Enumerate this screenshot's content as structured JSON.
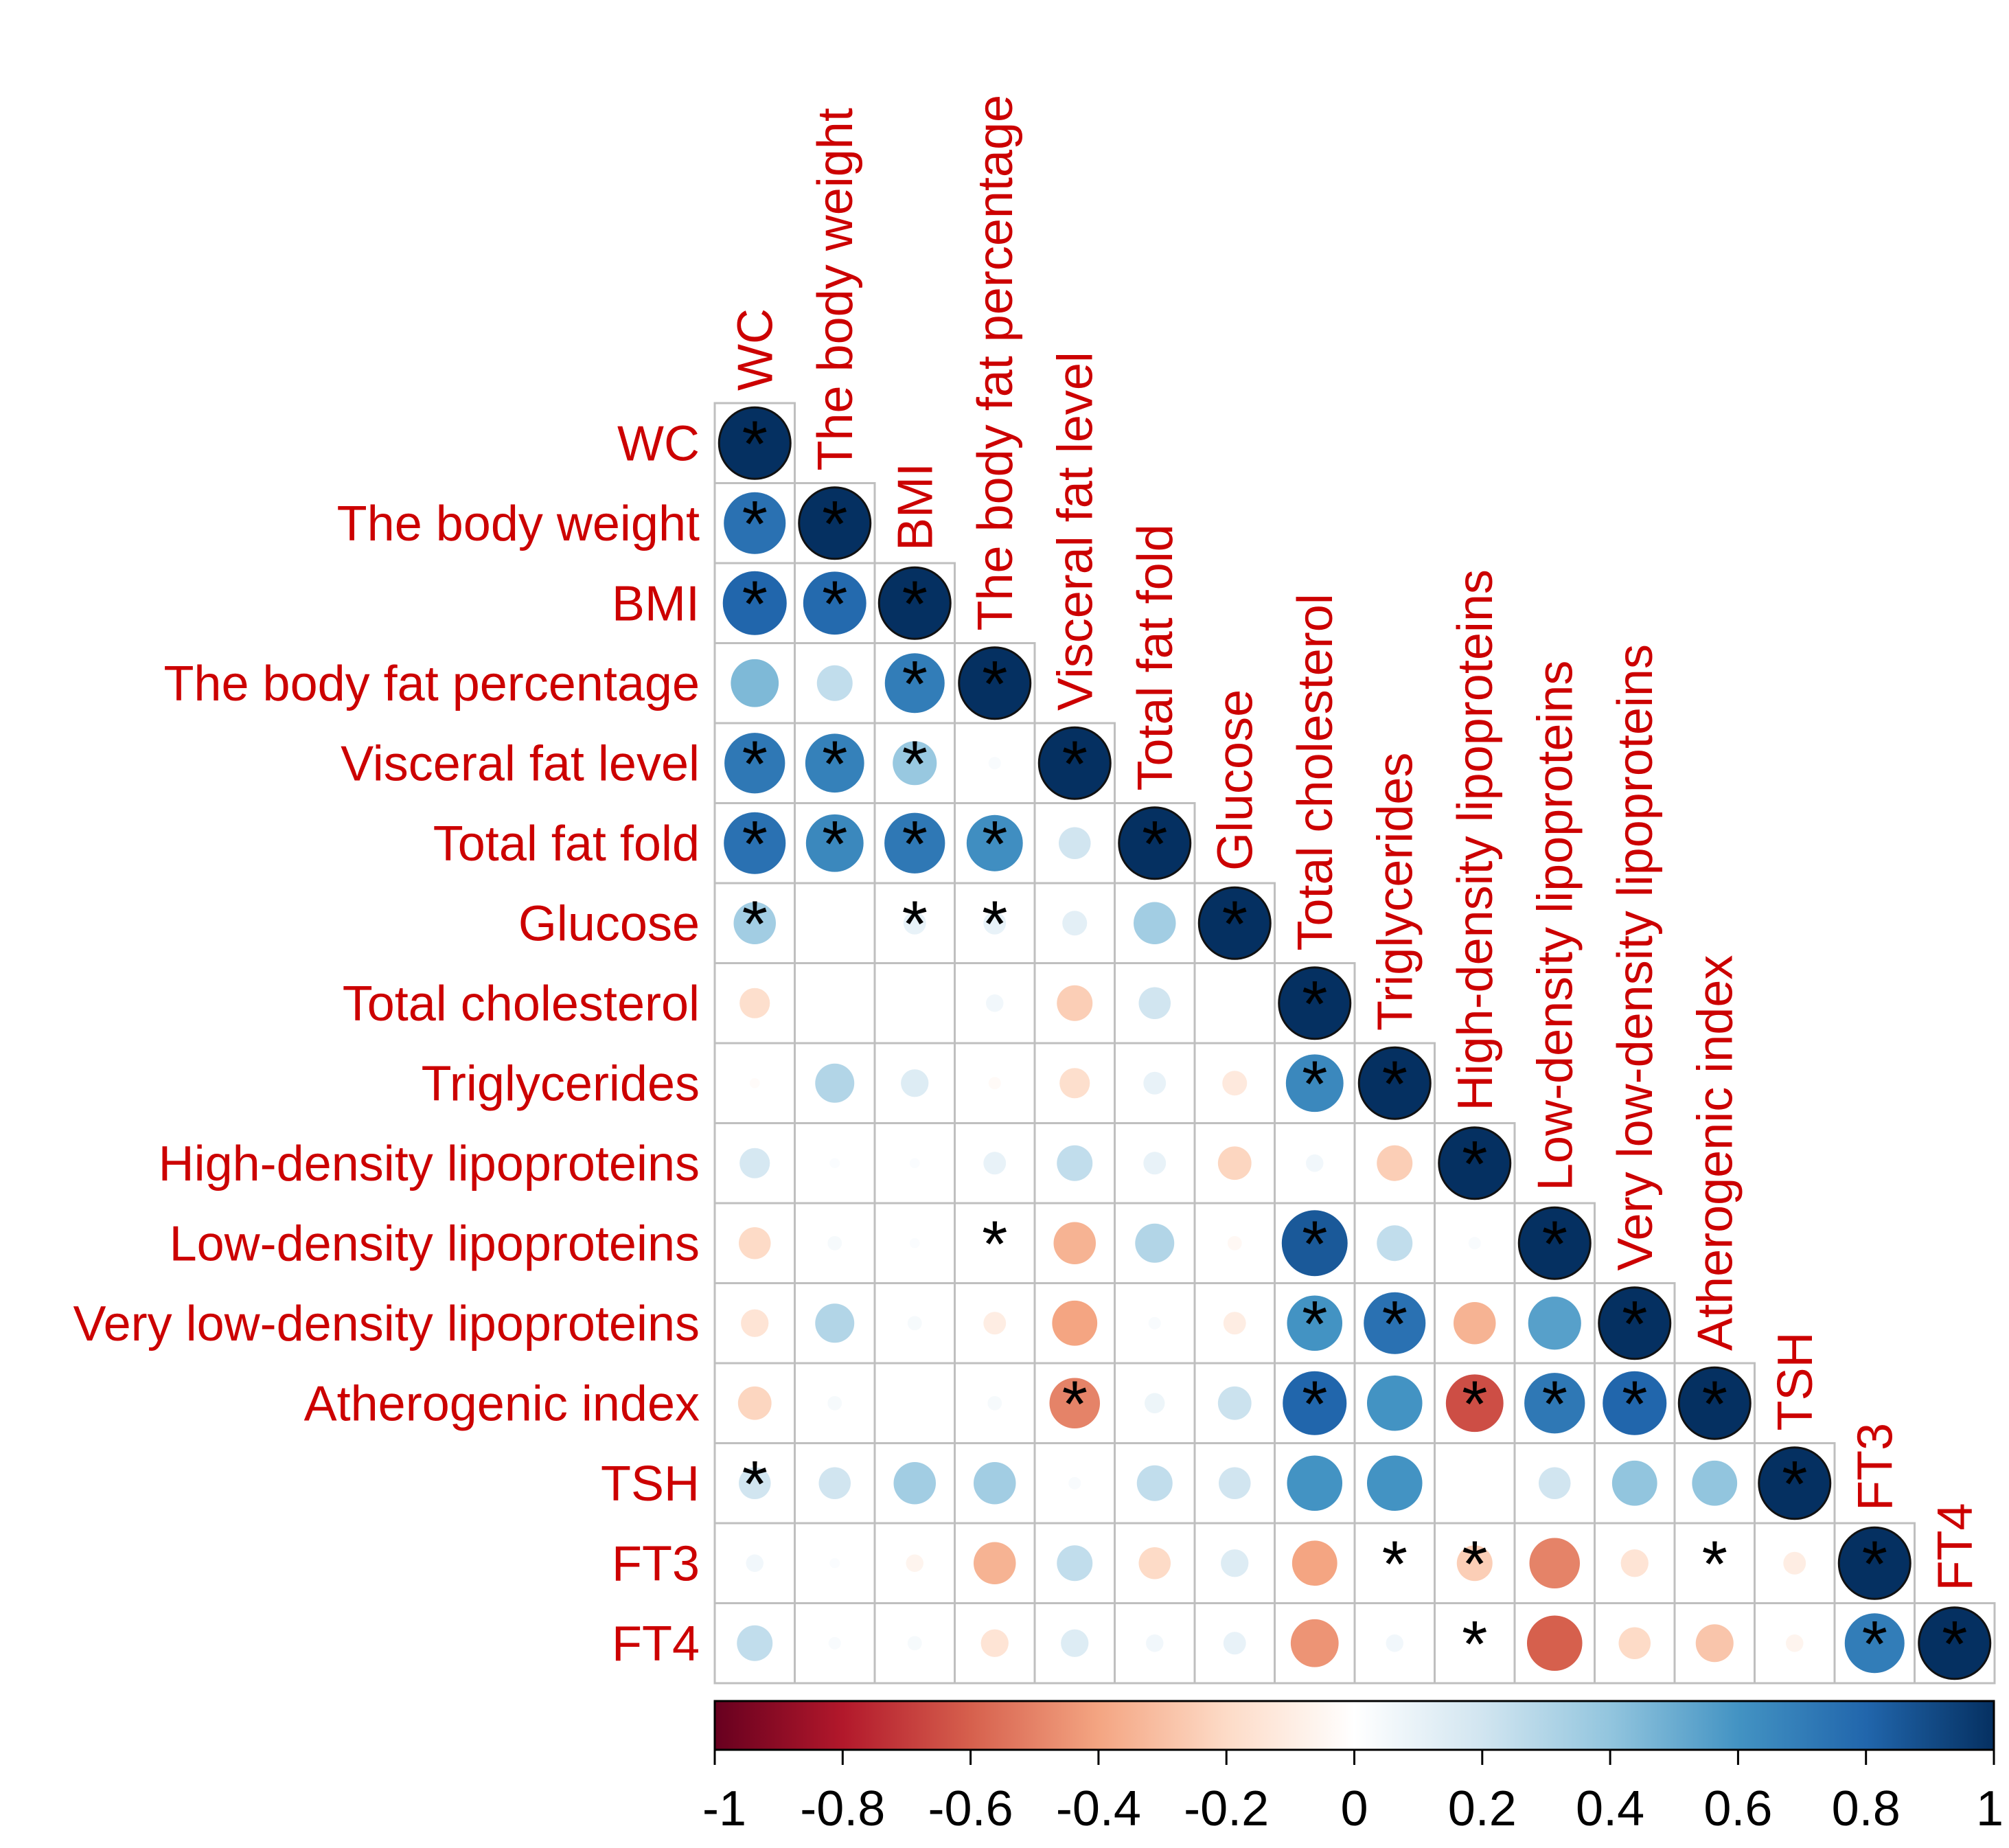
{
  "chart_data": {
    "type": "heatmap",
    "title": "",
    "variables": [
      "WC",
      "The body weight",
      "BMI",
      "The body fat percentage",
      "Visceral fat level",
      "Total fat fold",
      "Glucose",
      "Total cholesterol",
      "Triglycerides",
      "High-density lipoproteins",
      "Low-density lipoproteins",
      "Very low-density lipoproteins",
      "Atherogenic index",
      "TSH",
      "FT3",
      "FT4"
    ],
    "values": [
      [
        1
      ],
      [
        0.75,
        1
      ],
      [
        0.8,
        0.78,
        1
      ],
      [
        0.45,
        0.25,
        0.7,
        1
      ],
      [
        0.72,
        0.68,
        0.38,
        0.03,
        1
      ],
      [
        0.75,
        0.65,
        0.72,
        0.62,
        0.2,
        1
      ],
      [
        0.35,
        0,
        0.1,
        0.1,
        0.12,
        0.35,
        1
      ],
      [
        -0.18,
        0,
        0,
        0.06,
        -0.25,
        0.2,
        0,
        1
      ],
      [
        -0.02,
        0.3,
        0.15,
        -0.03,
        -0.18,
        0.1,
        -0.12,
        0.65,
        1
      ],
      [
        0.18,
        0.02,
        0.02,
        0.1,
        0.25,
        0.1,
        -0.22,
        0.06,
        -0.25,
        1
      ],
      [
        -0.2,
        0.04,
        0.02,
        0,
        -0.35,
        0.3,
        -0.04,
        0.85,
        0.25,
        0.03,
        1
      ],
      [
        -0.15,
        0.3,
        0.04,
        -0.1,
        -0.4,
        0.03,
        -0.1,
        0.6,
        0.75,
        -0.35,
        0.55,
        1
      ],
      [
        -0.22,
        0.04,
        0,
        0.04,
        -0.5,
        0.08,
        0.22,
        0.8,
        0.6,
        -0.65,
        0.72,
        0.8,
        1
      ],
      [
        0.2,
        0.2,
        0.35,
        0.35,
        0.03,
        0.25,
        0.2,
        0.6,
        0.6,
        0,
        0.2,
        0.4,
        0.4,
        1
      ],
      [
        0.06,
        0.02,
        -0.06,
        -0.35,
        0.25,
        -0.2,
        0.15,
        -0.4,
        0,
        -0.25,
        -0.5,
        -0.15,
        0,
        -0.1,
        1
      ],
      [
        0.25,
        0.03,
        0.04,
        -0.15,
        0.15,
        0.06,
        0.1,
        -0.45,
        0.06,
        0,
        -0.6,
        -0.2,
        -0.28,
        -0.06,
        0.7,
        1
      ]
    ],
    "significance": [
      [
        1
      ],
      [
        1,
        1
      ],
      [
        1,
        1,
        1
      ],
      [
        0,
        0,
        1,
        1
      ],
      [
        1,
        1,
        1,
        0,
        1
      ],
      [
        1,
        1,
        1,
        1,
        0,
        1
      ],
      [
        1,
        0,
        1,
        1,
        0,
        0,
        1
      ],
      [
        0,
        0,
        0,
        0,
        0,
        0,
        0,
        1
      ],
      [
        0,
        0,
        0,
        0,
        0,
        0,
        0,
        1,
        1
      ],
      [
        0,
        0,
        0,
        0,
        0,
        0,
        0,
        0,
        0,
        1
      ],
      [
        0,
        0,
        0,
        1,
        0,
        0,
        0,
        1,
        0,
        0,
        1
      ],
      [
        0,
        0,
        0,
        0,
        0,
        0,
        0,
        1,
        1,
        0,
        0,
        1
      ],
      [
        0,
        0,
        0,
        0,
        1,
        0,
        0,
        1,
        0,
        1,
        1,
        1,
        1
      ],
      [
        1,
        0,
        0,
        0,
        0,
        0,
        0,
        0,
        0,
        0,
        0,
        0,
        0,
        1
      ],
      [
        0,
        0,
        0,
        0,
        0,
        0,
        0,
        0,
        1,
        1,
        0,
        0,
        1,
        0,
        1
      ],
      [
        0,
        0,
        0,
        0,
        0,
        0,
        0,
        0,
        0,
        1,
        0,
        0,
        0,
        0,
        1,
        1
      ]
    ],
    "significance_marker": "*",
    "colorbar": {
      "range": [
        -1,
        1
      ],
      "ticks": [
        "-1",
        "-0.8",
        "-0.6",
        "-0.4",
        "-0.2",
        "0",
        "0.2",
        "0.4",
        "0.6",
        "0.8",
        "1"
      ],
      "colors": [
        "#67001f",
        "#b2182b",
        "#d6604d",
        "#f4a582",
        "#fddbc7",
        "#ffffff",
        "#d1e5f0",
        "#92c5de",
        "#4393c3",
        "#2166ac",
        "#053061"
      ]
    },
    "label_color": "#cc0000",
    "grid_color": "#bfbfbf"
  }
}
